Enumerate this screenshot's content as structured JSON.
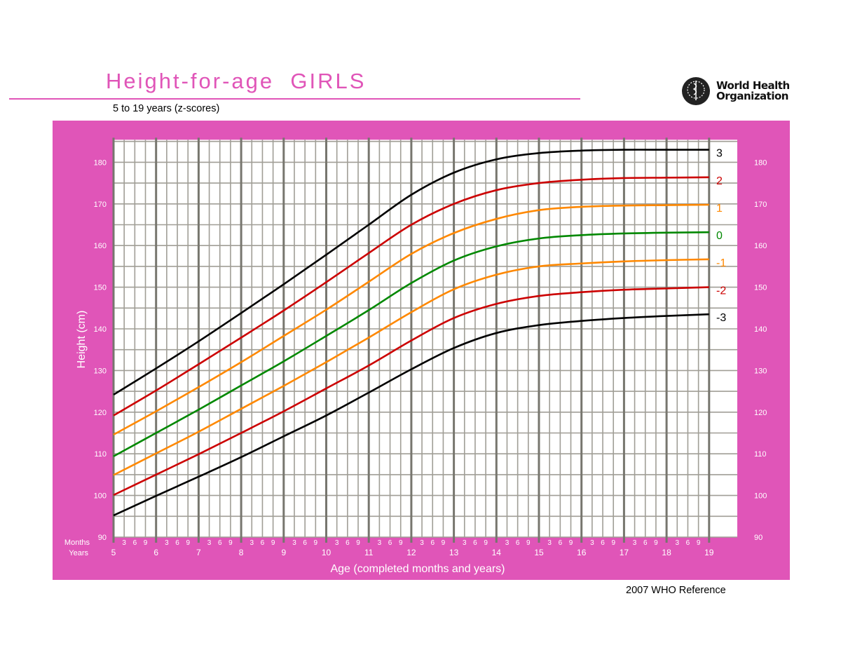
{
  "header": {
    "title": "Height-for-age  GIRLS",
    "subtitle": "5 to 19 years (z-scores)",
    "logo_line1": "World Health",
    "logo_line2": "Organization"
  },
  "footer": {
    "reference": "2007 WHO Reference"
  },
  "axes": {
    "xlabel": "Age (completed months and years)",
    "ylabel": "Height (cm)",
    "months_label": "Months",
    "years_label": "Years",
    "month_ticks": [
      "3",
      "6",
      "9"
    ],
    "year_ticks": [
      "5",
      "6",
      "7",
      "8",
      "9",
      "10",
      "11",
      "12",
      "13",
      "14",
      "15",
      "16",
      "17",
      "18",
      "19"
    ],
    "y_ticks": [
      "90",
      "100",
      "110",
      "120",
      "130",
      "140",
      "150",
      "160",
      "170",
      "180"
    ]
  },
  "colors": {
    "panel": "#e055b8",
    "grid_minor": "#a09e96",
    "grid_major": "#77766e",
    "sd3": "#000000",
    "sd2": "#cc0000",
    "sd1": "#ff8800",
    "median": "#008800"
  },
  "chart_data": {
    "type": "line",
    "title": "Height-for-age GIRLS",
    "subtitle": "5 to 19 years (z-scores)",
    "xlabel": "Age (completed months and years)",
    "ylabel": "Height (cm)",
    "xlim": [
      5,
      19.65
    ],
    "ylim": [
      90,
      185.4
    ],
    "grid": true,
    "legend_position": "right-end labels",
    "x": [
      5,
      6,
      7,
      8,
      9,
      10,
      11,
      12,
      13,
      14,
      15,
      16,
      17,
      18,
      19
    ],
    "series": [
      {
        "name": "3",
        "color": "#000000",
        "values": [
          124.2,
          130.5,
          137.0,
          143.8,
          150.7,
          157.8,
          165.0,
          172.2,
          177.5,
          180.7,
          182.2,
          182.8,
          183.0,
          183.0,
          183.0
        ]
      },
      {
        "name": "2",
        "color": "#cc0000",
        "values": [
          119.2,
          125.2,
          131.5,
          137.9,
          144.4,
          151.2,
          158.2,
          165.0,
          170.0,
          173.3,
          175.0,
          175.8,
          176.2,
          176.3,
          176.4
        ]
      },
      {
        "name": "1",
        "color": "#ff8800",
        "values": [
          114.6,
          120.2,
          126.0,
          132.0,
          138.3,
          144.6,
          151.3,
          158.0,
          163.0,
          166.4,
          168.5,
          169.3,
          169.6,
          169.7,
          169.8
        ]
      },
      {
        "name": "0",
        "color": "#008800",
        "values": [
          109.4,
          115.0,
          120.6,
          126.4,
          132.2,
          138.3,
          144.5,
          151.0,
          156.4,
          159.8,
          161.7,
          162.5,
          162.9,
          163.1,
          163.2
        ]
      },
      {
        "name": "-1",
        "color": "#ff8800",
        "values": [
          104.9,
          110.1,
          115.3,
          120.8,
          126.3,
          132.0,
          137.9,
          144.0,
          149.5,
          153.0,
          155.0,
          155.7,
          156.2,
          156.5,
          156.7
        ]
      },
      {
        "name": "-2",
        "color": "#cc0000",
        "values": [
          100.1,
          105.0,
          109.9,
          115.0,
          120.2,
          125.7,
          131.2,
          137.2,
          142.6,
          146.0,
          147.9,
          148.8,
          149.4,
          149.7,
          150.0
        ]
      },
      {
        "name": "-3",
        "color": "#000000",
        "values": [
          95.2,
          99.9,
          104.5,
          109.2,
          114.2,
          119.2,
          124.7,
          130.3,
          135.4,
          139.0,
          140.9,
          141.9,
          142.6,
          143.1,
          143.5
        ]
      }
    ]
  }
}
